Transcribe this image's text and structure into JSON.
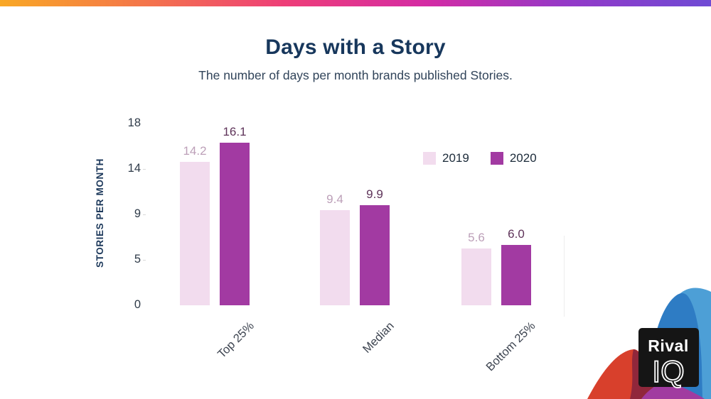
{
  "header": {
    "title": "Days with a Story",
    "subtitle": "The number of days per month brands published Stories."
  },
  "chart_data": {
    "type": "bar",
    "title": "Days with a Story",
    "subtitle": "The number of days per month brands published Stories.",
    "categories": [
      "Top 25%",
      "Median",
      "Bottom 25%"
    ],
    "series": [
      {
        "name": "2019",
        "values": [
          14.2,
          9.4,
          5.6
        ],
        "color": "#F2DCEE",
        "label_color": "#BC9FB8"
      },
      {
        "name": "2020",
        "values": [
          16.1,
          9.9,
          6.0
        ],
        "color": "#A23AA2",
        "label_color": "#5E3359"
      }
    ],
    "ylabel": "STORIES PER MONTH",
    "xlabel": "",
    "y_ticks": [
      "0",
      "5",
      "9",
      "14",
      "18"
    ],
    "ylim": [
      0,
      18
    ],
    "grid": false,
    "legend_position": "upper-right-inside",
    "value_labels": true,
    "x_tick_rotation": 45
  },
  "branding": {
    "logo_line1": "Rival",
    "logo_line2": "IQ"
  },
  "colors": {
    "gradient_bar": [
      "#F9A825",
      "#F4764A",
      "#EE3E78",
      "#D42BA4",
      "#9339C8",
      "#6F4BD4"
    ],
    "title_text": "#17375C",
    "bar_2019": "#F2DCEE",
    "bar_2020": "#A23AA2",
    "logo_bg": "#151515",
    "art_blue": "#2E7CC4",
    "art_light_blue": "#4D9FD6",
    "art_red": "#D8402C",
    "art_maroon": "#90273B",
    "art_purple": "#A13BA0"
  }
}
